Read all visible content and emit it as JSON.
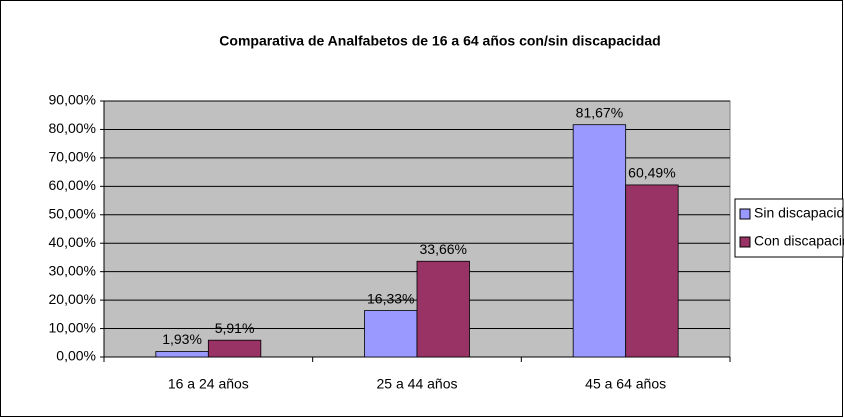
{
  "chart_data": {
    "type": "bar",
    "title": "Comparativa de Analfabetos de 16 a 64 años con/sin discapacidad",
    "categories": [
      "16 a 24 años",
      "25 a 44 años",
      "45 a 64 años"
    ],
    "series": [
      {
        "name": "Sin discapacidad",
        "color": "#9999ff",
        "values": [
          1.93,
          16.33,
          81.67
        ],
        "value_labels": [
          "1,93%",
          "16,33%",
          "81,67%"
        ]
      },
      {
        "name": "Con discapacidad",
        "color": "#993366",
        "values": [
          5.91,
          33.66,
          60.49
        ],
        "value_labels": [
          "5,91%",
          "33,66%",
          "60,49%"
        ]
      }
    ],
    "ylim": [
      0,
      90
    ],
    "yticks": [
      {
        "value": 0,
        "label": "0,00%"
      },
      {
        "value": 10,
        "label": "10,00%"
      },
      {
        "value": 20,
        "label": "20,00%"
      },
      {
        "value": 30,
        "label": "30,00%"
      },
      {
        "value": 40,
        "label": "40,00%"
      },
      {
        "value": 50,
        "label": "50,00%"
      },
      {
        "value": 60,
        "label": "60,00%"
      },
      {
        "value": 70,
        "label": "70,00%"
      },
      {
        "value": 80,
        "label": "80,00%"
      },
      {
        "value": 90,
        "label": "90,00%"
      }
    ],
    "grid": true,
    "legend": "right"
  }
}
